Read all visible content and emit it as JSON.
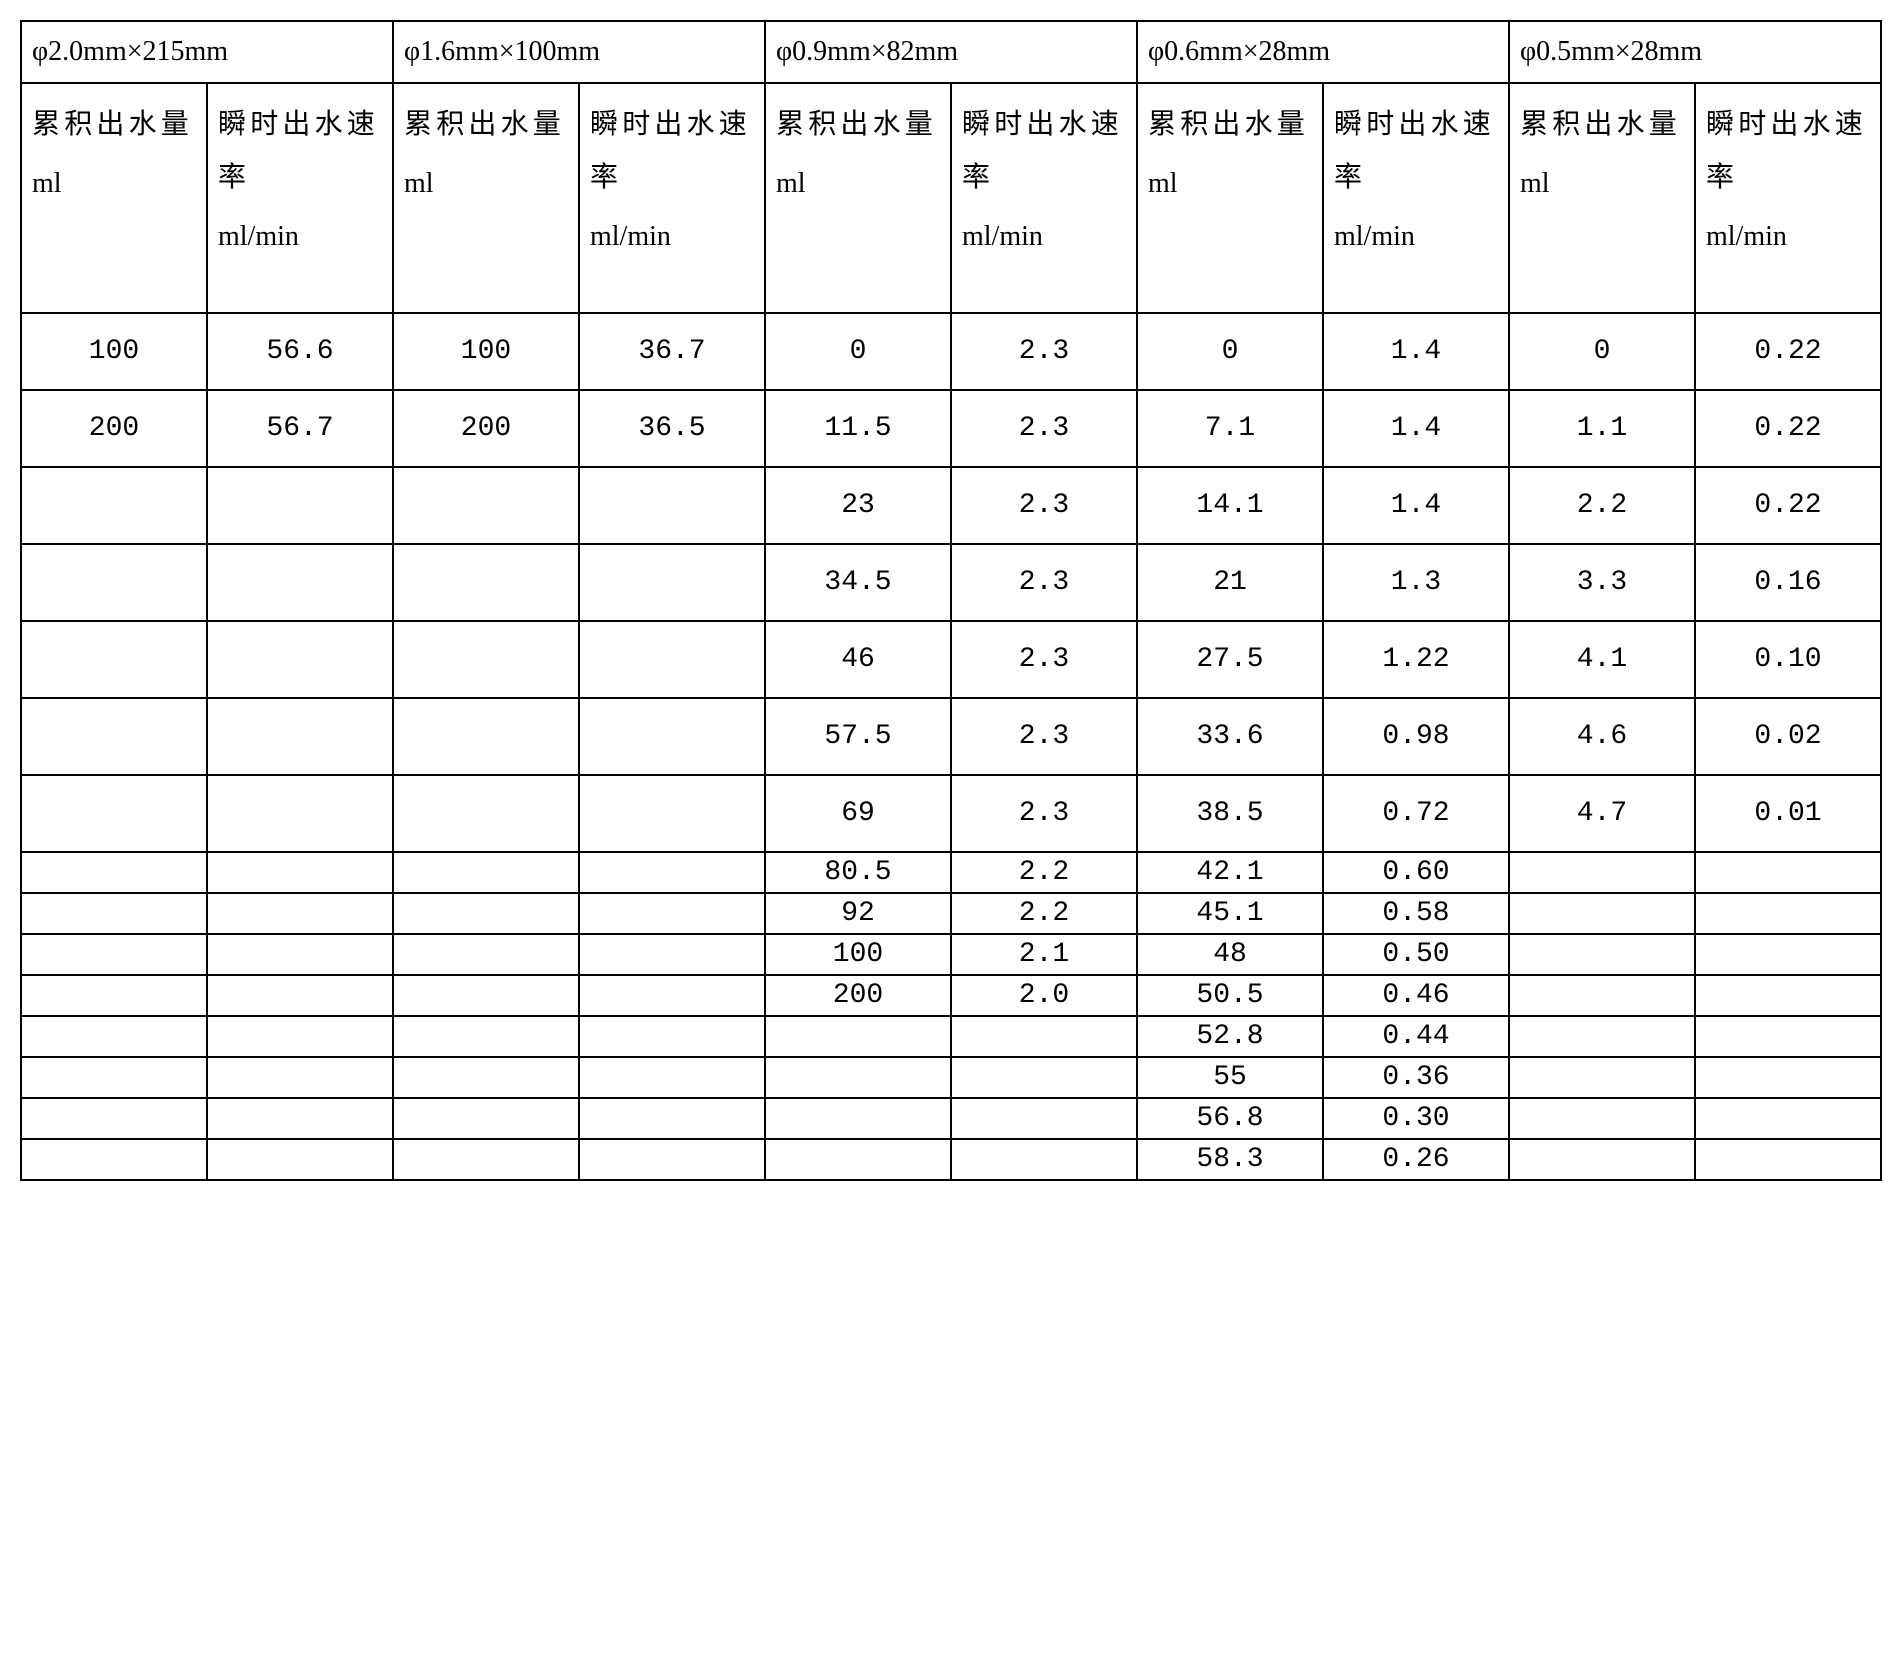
{
  "table": {
    "type": "table",
    "border_color": "#000000",
    "background_color": "#ffffff",
    "text_color": "#000000",
    "group_header_fontsize": 28,
    "subhead_fontsize": 28,
    "cell_fontsize": 28,
    "font_family": "SimSun",
    "groups": [
      {
        "title": "φ2.0mm×215mm",
        "col_a_label": "累积出水量",
        "col_a_unit": "ml",
        "col_b_label": "瞬时出水速率",
        "col_b_unit": "ml/min"
      },
      {
        "title": "φ1.6mm×100mm",
        "col_a_label": "累积出水量",
        "col_a_unit": "ml",
        "col_b_label": "瞬时出水速率",
        "col_b_unit": "ml/min"
      },
      {
        "title": "φ0.9mm×82mm",
        "col_a_label": "累积出水量",
        "col_a_unit": "ml",
        "col_b_label": "瞬时出水速率",
        "col_b_unit": "ml/min"
      },
      {
        "title": "φ0.6mm×28mm",
        "col_a_label": "累积出水量",
        "col_a_unit": "ml",
        "col_b_label": "瞬时出水速率",
        "col_b_unit": "ml/min"
      },
      {
        "title": "φ0.5mm×28mm",
        "col_a_label": "累积出水量",
        "col_a_unit": "ml",
        "col_b_label": "瞬时出水速率",
        "col_b_unit": "ml/min"
      }
    ],
    "rows": [
      {
        "h": "tall",
        "c": [
          "100",
          "56.6",
          "100",
          "36.7",
          "0",
          "2.3",
          "0",
          "1.4",
          "0",
          "0.22"
        ]
      },
      {
        "h": "tall",
        "c": [
          "200",
          "56.7",
          "200",
          "36.5",
          "11.5",
          "2.3",
          "7.1",
          "1.4",
          "1.1",
          "0.22"
        ]
      },
      {
        "h": "tall",
        "c": [
          "",
          "",
          "",
          "",
          "23",
          "2.3",
          "14.1",
          "1.4",
          "2.2",
          "0.22"
        ]
      },
      {
        "h": "tall",
        "c": [
          "",
          "",
          "",
          "",
          "34.5",
          "2.3",
          "21",
          "1.3",
          "3.3",
          "0.16"
        ]
      },
      {
        "h": "tall",
        "c": [
          "",
          "",
          "",
          "",
          "46",
          "2.3",
          "27.5",
          "1.22",
          "4.1",
          "0.10"
        ]
      },
      {
        "h": "tall",
        "c": [
          "",
          "",
          "",
          "",
          "57.5",
          "2.3",
          "33.6",
          "0.98",
          "4.6",
          "0.02"
        ]
      },
      {
        "h": "tall",
        "c": [
          "",
          "",
          "",
          "",
          "69",
          "2.3",
          "38.5",
          "0.72",
          "4.7",
          "0.01"
        ]
      },
      {
        "h": "short",
        "c": [
          "",
          "",
          "",
          "",
          "80.5",
          "2.2",
          "42.1",
          "0.60",
          "",
          ""
        ]
      },
      {
        "h": "short",
        "c": [
          "",
          "",
          "",
          "",
          "92",
          "2.2",
          "45.1",
          "0.58",
          "",
          ""
        ]
      },
      {
        "h": "short",
        "c": [
          "",
          "",
          "",
          "",
          "100",
          "2.1",
          "48",
          "0.50",
          "",
          ""
        ]
      },
      {
        "h": "short",
        "c": [
          "",
          "",
          "",
          "",
          "200",
          "2.0",
          "50.5",
          "0.46",
          "",
          ""
        ]
      },
      {
        "h": "short",
        "c": [
          "",
          "",
          "",
          "",
          "",
          "",
          "52.8",
          "0.44",
          "",
          ""
        ]
      },
      {
        "h": "short",
        "c": [
          "",
          "",
          "",
          "",
          "",
          "",
          "55",
          "0.36",
          "",
          ""
        ]
      },
      {
        "h": "short",
        "c": [
          "",
          "",
          "",
          "",
          "",
          "",
          "56.8",
          "0.30",
          "",
          ""
        ]
      },
      {
        "h": "short",
        "c": [
          "",
          "",
          "",
          "",
          "",
          "",
          "58.3",
          "0.26",
          "",
          ""
        ]
      }
    ]
  }
}
